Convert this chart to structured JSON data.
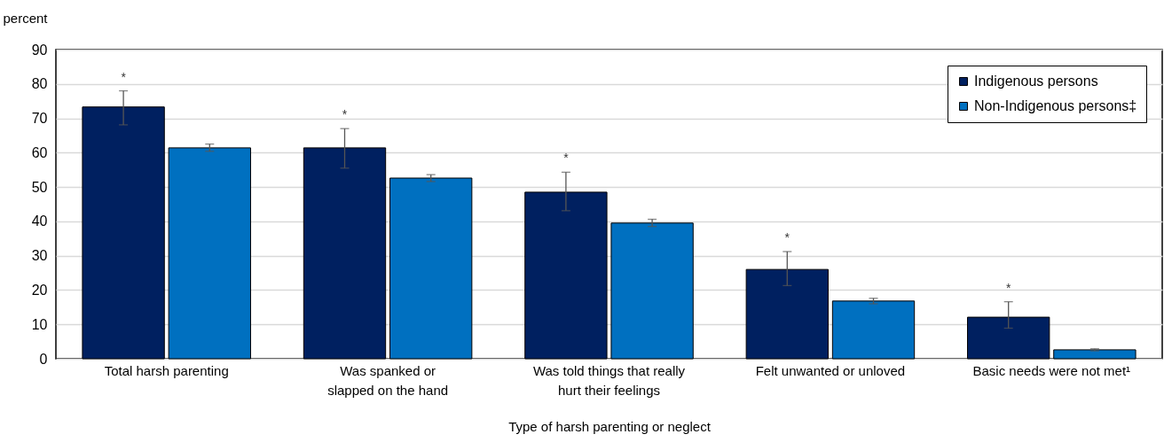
{
  "chart_data": {
    "type": "bar",
    "xlabel": "Type of harsh parenting or neglect",
    "ylabel": "percent",
    "categories": [
      "Total harsh parenting",
      "Was spanked or slapped on the hand",
      "Was told things that really hurt their feelings",
      "Felt unwanted or unloved",
      "Basic needs were not met¹"
    ],
    "series": [
      {
        "name": "Indigenous persons",
        "color": "#002060",
        "values": [
          73.3,
          61.4,
          48.5,
          26.0,
          12.1
        ],
        "errors": [
          [
            68.1,
            78.0
          ],
          [
            55.5,
            67.0
          ],
          [
            43.1,
            54.3
          ],
          [
            21.3,
            31.2
          ],
          [
            8.9,
            16.6
          ]
        ]
      },
      {
        "name": "Non-Indigenous persons‡",
        "color": "#0070c0",
        "values": [
          61.4,
          52.6,
          39.5,
          16.8,
          2.6
        ],
        "errors": [
          [
            60.4,
            62.5
          ],
          [
            51.6,
            53.6
          ],
          [
            38.5,
            40.6
          ],
          [
            16.0,
            17.6
          ],
          [
            2.3,
            2.9
          ]
        ]
      }
    ],
    "annotations": [
      "*",
      "*",
      "*",
      "*",
      "*"
    ],
    "ylim": [
      0,
      90
    ],
    "yticks": [
      0,
      10,
      20,
      30,
      40,
      50,
      60,
      70,
      80,
      90
    ],
    "grid": "y",
    "legend": "top right"
  }
}
